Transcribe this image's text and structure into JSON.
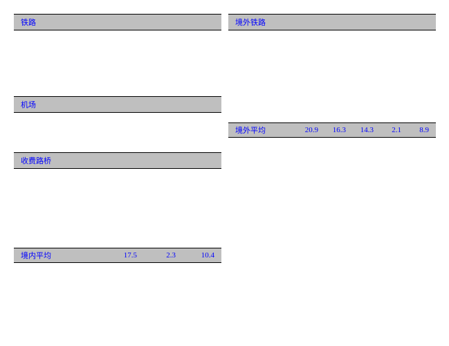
{
  "left": {
    "sections": [
      {
        "header": "铁路",
        "rows": [
          {
            "name": "",
            "vals": [
              "",
              "",
              ""
            ]
          },
          {
            "name": "",
            "vals": [
              "",
              "",
              ""
            ]
          },
          {
            "name": "",
            "vals": [
              "",
              "",
              ""
            ]
          },
          {
            "name": "",
            "vals": [
              "",
              "",
              ""
            ]
          },
          {
            "name": "",
            "vals": [
              "",
              "",
              ""
            ]
          }
        ]
      },
      {
        "header": "机场",
        "rows": [
          {
            "name": "",
            "vals": [
              "",
              "",
              ""
            ]
          },
          {
            "name": "",
            "vals": [
              "",
              "",
              ""
            ]
          },
          {
            "name": "",
            "vals": [
              "",
              "",
              ""
            ]
          }
        ]
      },
      {
        "header": "收费路桥",
        "rows": [
          {
            "name": "",
            "vals": [
              "",
              "",
              ""
            ]
          },
          {
            "name": "",
            "vals": [
              "",
              "",
              ""
            ]
          },
          {
            "name": "",
            "vals": [
              "",
              "",
              ""
            ]
          },
          {
            "name": "",
            "vals": [
              "",
              "",
              ""
            ]
          },
          {
            "name": "",
            "vals": [
              "",
              "",
              ""
            ]
          },
          {
            "name": "",
            "vals": [
              "",
              "",
              ""
            ]
          }
        ]
      }
    ],
    "summary": {
      "name": "境内平均",
      "vals": [
        "17.5",
        "2.3",
        "10.4"
      ]
    }
  },
  "right": {
    "sections": [
      {
        "header": "境外铁路",
        "rows": [
          {
            "name": "",
            "vals": [
              "",
              "",
              "",
              "",
              ""
            ]
          },
          {
            "name": "",
            "vals": [
              "",
              "",
              "",
              "",
              ""
            ]
          },
          {
            "name": "",
            "vals": [
              "",
              "",
              "",
              "",
              ""
            ]
          },
          {
            "name": "",
            "vals": [
              "",
              "",
              "",
              "",
              ""
            ]
          },
          {
            "name": "",
            "vals": [
              "",
              "",
              "",
              "",
              ""
            ]
          },
          {
            "name": "",
            "vals": [
              "",
              "",
              "",
              "",
              ""
            ]
          },
          {
            "name": "",
            "vals": [
              "",
              "",
              "",
              "",
              ""
            ]
          }
        ]
      }
    ],
    "summary": {
      "name": "境外平均",
      "vals": [
        "20.9",
        "16.3",
        "14.3",
        "2.1",
        "8.9"
      ]
    }
  }
}
